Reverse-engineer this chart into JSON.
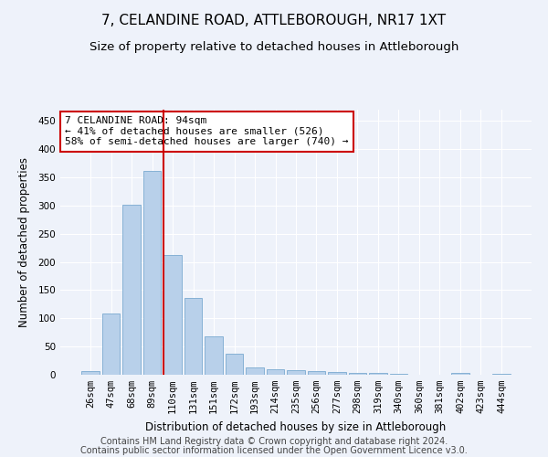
{
  "title": "7, CELANDINE ROAD, ATTLEBOROUGH, NR17 1XT",
  "subtitle": "Size of property relative to detached houses in Attleborough",
  "xlabel": "Distribution of detached houses by size in Attleborough",
  "ylabel": "Number of detached properties",
  "footnote1": "Contains HM Land Registry data © Crown copyright and database right 2024.",
  "footnote2": "Contains public sector information licensed under the Open Government Licence v3.0.",
  "categories": [
    "26sqm",
    "47sqm",
    "68sqm",
    "89sqm",
    "110sqm",
    "131sqm",
    "151sqm",
    "172sqm",
    "193sqm",
    "214sqm",
    "235sqm",
    "256sqm",
    "277sqm",
    "298sqm",
    "319sqm",
    "340sqm",
    "360sqm",
    "381sqm",
    "402sqm",
    "423sqm",
    "444sqm"
  ],
  "values": [
    7,
    108,
    301,
    362,
    212,
    136,
    68,
    37,
    13,
    10,
    8,
    7,
    5,
    3,
    3,
    2,
    0,
    0,
    3,
    0,
    2
  ],
  "bar_color": "#b8d0ea",
  "bar_edge_color": "#7aaad0",
  "background_color": "#eef2fa",
  "grid_color": "#ffffff",
  "annotation_text": "7 CELANDINE ROAD: 94sqm\n← 41% of detached houses are smaller (526)\n58% of semi-detached houses are larger (740) →",
  "annotation_box_color": "#ffffff",
  "annotation_border_color": "#cc0000",
  "vline_color": "#cc0000",
  "vline_position": 3.575,
  "ylim": [
    0,
    470
  ],
  "yticks": [
    0,
    50,
    100,
    150,
    200,
    250,
    300,
    350,
    400,
    450
  ],
  "title_fontsize": 11,
  "subtitle_fontsize": 9.5,
  "xlabel_fontsize": 8.5,
  "ylabel_fontsize": 8.5,
  "tick_fontsize": 7.5,
  "annotation_fontsize": 8,
  "footnote_fontsize": 7
}
